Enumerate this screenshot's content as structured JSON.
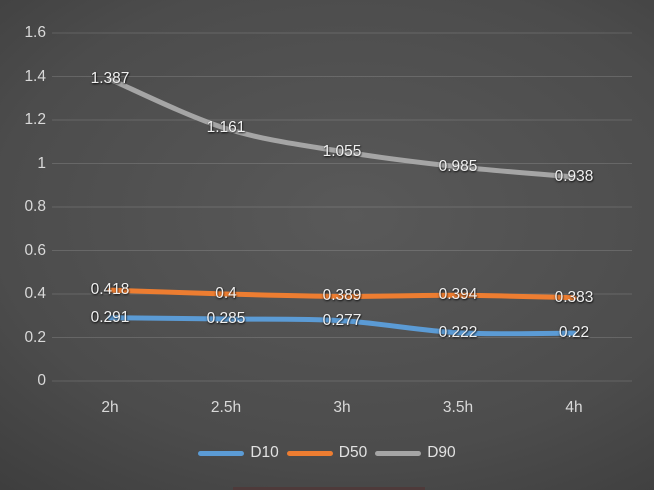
{
  "chart_data": {
    "type": "line",
    "title": "",
    "xlabel": "",
    "ylabel": "",
    "categories": [
      "2h",
      "2.5h",
      "3h",
      "3.5h",
      "4h"
    ],
    "series": [
      {
        "name": "D10",
        "color": "#5B9BD5",
        "values": [
          0.291,
          0.285,
          0.277,
          0.222,
          0.22
        ],
        "data_labels": [
          "0.291",
          "0.285",
          "0.277",
          "0.222",
          "0.22"
        ]
      },
      {
        "name": "D50",
        "color": "#ED7D31",
        "values": [
          0.418,
          0.4,
          0.389,
          0.394,
          0.383
        ],
        "data_labels": [
          "0.418",
          "0.4",
          "0.389",
          "0.394",
          "0.383"
        ]
      },
      {
        "name": "D90",
        "color": "#A5A5A5",
        "values": [
          1.387,
          1.161,
          1.055,
          0.985,
          0.938
        ],
        "data_labels": [
          "1.387",
          "1.161",
          "1.055",
          "0.985",
          "0.938"
        ]
      }
    ],
    "ylim": [
      0,
      1.6
    ],
    "yticks": [
      "0",
      "0.2",
      "0.4",
      "0.6",
      "0.8",
      "1",
      "1.2",
      "1.4",
      "1.6"
    ],
    "grid": true,
    "smooth": true,
    "legend_position": "bottom",
    "background": "dark-gradient",
    "gridline_color": "rgba(255,255,255,0.14)",
    "axis_text_color": "#d9d9d9",
    "data_label_color": "#f0f0f0"
  }
}
